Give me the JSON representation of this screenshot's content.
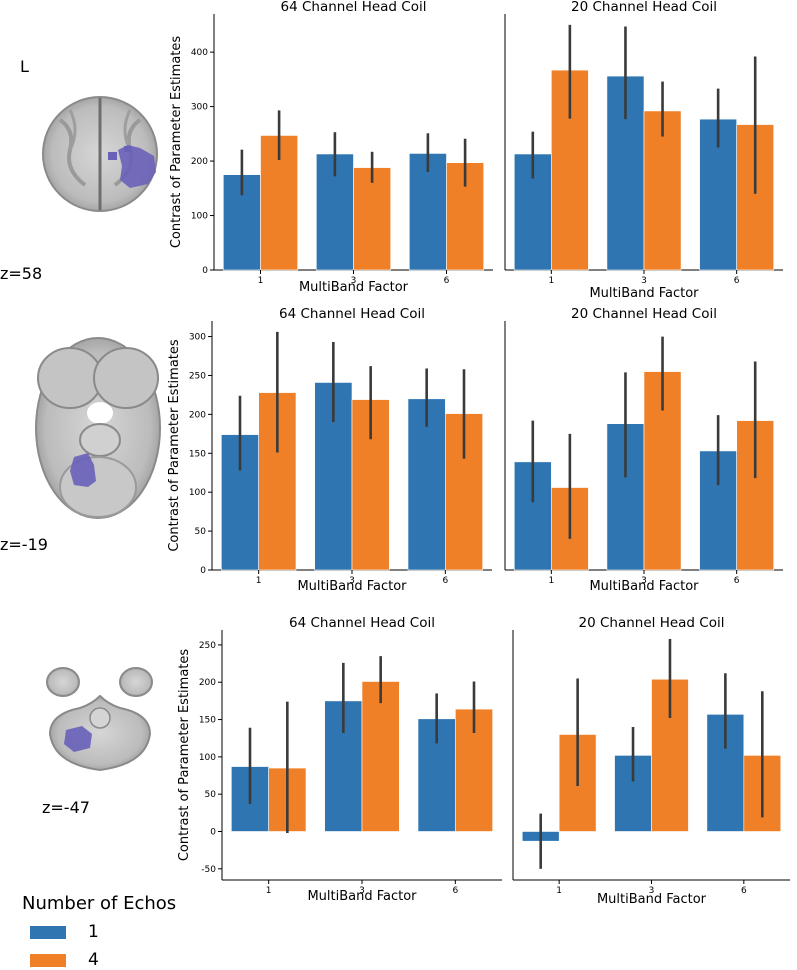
{
  "legend": {
    "title": "Number of Echos",
    "items": [
      {
        "label": "1",
        "color": "#2e75b1"
      },
      {
        "label": "4",
        "color": "#ef8027"
      }
    ]
  },
  "brain_labels": {
    "orientation": "L",
    "slices": [
      "z=58",
      "z=-19",
      "z=-47"
    ]
  },
  "colors": {
    "roi": "#6a62b8",
    "errorbar": "#3a3a3a",
    "axis": "#000000"
  },
  "chart_data": [
    {
      "type": "bar",
      "title": "64 Channel Head Coil",
      "xlabel": "MultiBand Factor",
      "ylabel": "Contrast of Parameter Estimates",
      "categories": [
        "1",
        "3",
        "6"
      ],
      "ylim": [
        0,
        470
      ],
      "yticks": [
        0,
        100,
        200,
        300,
        400
      ],
      "series": [
        {
          "name": "1",
          "values": [
            175,
            213,
            214
          ],
          "err_low": [
            137,
            172,
            180
          ],
          "err_high": [
            221,
            253,
            251
          ]
        },
        {
          "name": "4",
          "values": [
            247,
            188,
            197
          ],
          "err_low": [
            202,
            160,
            153
          ],
          "err_high": [
            293,
            217,
            241
          ]
        }
      ]
    },
    {
      "type": "bar",
      "title": "20 Channel Head Coil",
      "xlabel": "MultiBand Factor",
      "ylabel": "",
      "categories": [
        "1",
        "3",
        "6"
      ],
      "ylim": [
        0,
        470
      ],
      "yticks": [],
      "series": [
        {
          "name": "1",
          "values": [
            213,
            356,
            277
          ],
          "err_low": [
            168,
            277,
            225
          ],
          "err_high": [
            254,
            447,
            333
          ]
        },
        {
          "name": "4",
          "values": [
            367,
            292,
            267
          ],
          "err_low": [
            278,
            245,
            140
          ],
          "err_high": [
            450,
            346,
            392
          ]
        }
      ]
    },
    {
      "type": "bar",
      "title": "64 Channel Head Coil",
      "xlabel": "MultiBand Factor",
      "ylabel": "Contrast of Parameter Estimates",
      "categories": [
        "1",
        "3",
        "6"
      ],
      "ylim": [
        0,
        320
      ],
      "yticks": [
        0,
        50,
        100,
        150,
        200,
        250,
        300
      ],
      "series": [
        {
          "name": "1",
          "values": [
            174,
            241,
            220
          ],
          "err_low": [
            128,
            190,
            184
          ],
          "err_high": [
            224,
            293,
            259
          ]
        },
        {
          "name": "4",
          "values": [
            228,
            219,
            201
          ],
          "err_low": [
            151,
            168,
            143
          ],
          "err_high": [
            306,
            262,
            258
          ]
        }
      ]
    },
    {
      "type": "bar",
      "title": "20 Channel Head Coil",
      "xlabel": "MultiBand Factor",
      "ylabel": "",
      "categories": [
        "1",
        "3",
        "6"
      ],
      "ylim": [
        0,
        320
      ],
      "yticks": [],
      "series": [
        {
          "name": "1",
          "values": [
            139,
            188,
            153
          ],
          "err_low": [
            87,
            119,
            109
          ],
          "err_high": [
            192,
            254,
            199
          ]
        },
        {
          "name": "4",
          "values": [
            106,
            255,
            192
          ],
          "err_low": [
            40,
            205,
            118
          ],
          "err_high": [
            175,
            300,
            268
          ]
        }
      ]
    },
    {
      "type": "bar",
      "title": "64 Channel Head Coil",
      "xlabel": "MultiBand Factor",
      "ylabel": "Contrast of Parameter Estimates",
      "categories": [
        "1",
        "3",
        "6"
      ],
      "ylim": [
        -65,
        270
      ],
      "yticks": [
        -50,
        0,
        50,
        100,
        150,
        200,
        250
      ],
      "series": [
        {
          "name": "1",
          "values": [
            87,
            175,
            151
          ],
          "err_low": [
            37,
            132,
            118
          ],
          "err_high": [
            139,
            226,
            185
          ]
        },
        {
          "name": "4",
          "values": [
            85,
            201,
            164
          ],
          "err_low": [
            -2,
            172,
            132
          ],
          "err_high": [
            174,
            235,
            201
          ]
        }
      ]
    },
    {
      "type": "bar",
      "title": "20 Channel Head Coil",
      "xlabel": "MultiBand Factor",
      "ylabel": "",
      "categories": [
        "1",
        "3",
        "6"
      ],
      "ylim": [
        -65,
        270
      ],
      "yticks": [],
      "series": [
        {
          "name": "1",
          "values": [
            -13,
            102,
            157
          ],
          "err_low": [
            -50,
            67,
            111
          ],
          "err_high": [
            24,
            140,
            212
          ]
        },
        {
          "name": "4",
          "values": [
            130,
            204,
            102
          ],
          "err_low": [
            61,
            152,
            19
          ],
          "err_high": [
            205,
            258,
            188
          ]
        }
      ]
    }
  ]
}
